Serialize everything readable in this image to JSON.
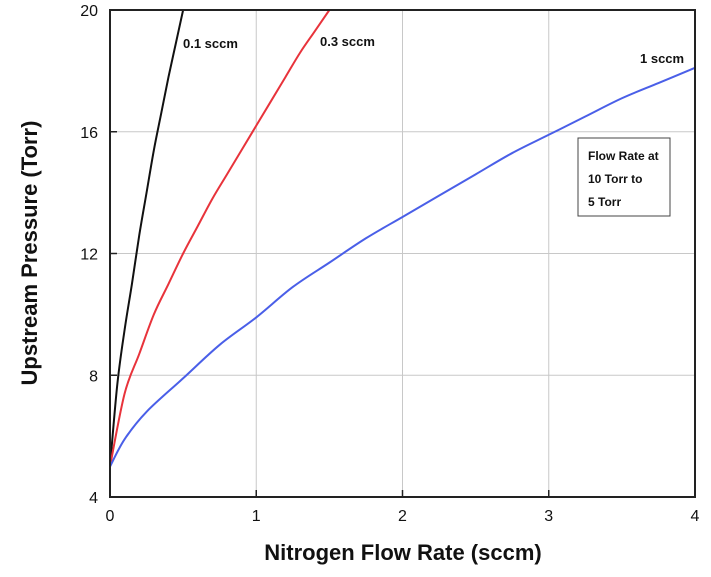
{
  "chart_data": {
    "type": "line",
    "title": "",
    "xlabel": "Nitrogen Flow Rate (sccm)",
    "ylabel": "Upstream Pressure (Torr)",
    "xlim": [
      0,
      4
    ],
    "ylim": [
      4,
      20
    ],
    "x_ticks": [
      "0",
      "1",
      "2",
      "3",
      "4"
    ],
    "y_ticks": [
      "4",
      "8",
      "12",
      "16",
      "20"
    ],
    "grid": true,
    "series": [
      {
        "name": "0.1 sccm",
        "color": "#111111",
        "x": [
          0,
          0.05,
          0.1,
          0.15,
          0.2,
          0.25,
          0.3,
          0.35,
          0.4,
          0.45,
          0.5
        ],
        "y": [
          5.0,
          7.7,
          9.5,
          11.0,
          12.6,
          14.0,
          15.4,
          16.6,
          17.8,
          18.9,
          20.0
        ]
      },
      {
        "name": "0.3 sccm",
        "color": "#e8333b",
        "x": [
          0,
          0.1,
          0.2,
          0.3,
          0.4,
          0.5,
          0.6,
          0.7,
          0.8,
          0.9,
          1.0,
          1.1,
          1.2,
          1.3,
          1.4,
          1.5
        ],
        "y": [
          5.0,
          7.4,
          8.7,
          10.0,
          11.0,
          12.0,
          12.9,
          13.8,
          14.6,
          15.4,
          16.2,
          17.0,
          17.8,
          18.6,
          19.3,
          20.0
        ]
      },
      {
        "name": "1 sccm",
        "color": "#4a5fe8",
        "x": [
          0,
          0.1,
          0.25,
          0.5,
          0.75,
          1.0,
          1.25,
          1.5,
          1.75,
          2.0,
          2.25,
          2.5,
          2.75,
          3.0,
          3.25,
          3.5,
          3.75,
          4.0
        ],
        "y": [
          5.0,
          5.9,
          6.8,
          7.9,
          9.0,
          9.9,
          10.9,
          11.7,
          12.5,
          13.2,
          13.9,
          14.6,
          15.3,
          15.9,
          16.5,
          17.1,
          17.6,
          18.1
        ]
      }
    ],
    "annotation": {
      "lines": [
        "Flow Rate at",
        "10 Torr to",
        "5 Torr"
      ]
    }
  }
}
